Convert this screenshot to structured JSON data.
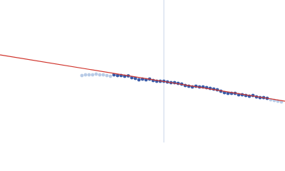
{
  "chart_data": {
    "type": "scatter",
    "xlim": [
      0,
      400
    ],
    "ylim": [
      0,
      200
    ],
    "vline": {
      "x": 230,
      "color": "#c9d5ea"
    },
    "series": [
      {
        "type": "scatter",
        "color": "#b8cbe6",
        "x": [
          115,
          120,
          125,
          130,
          135,
          140,
          145,
          150,
          155
        ],
        "values": [
          94,
          95,
          95,
          95,
          96,
          95,
          95,
          94,
          93
        ]
      },
      {
        "type": "scatter",
        "color": "#3a5ba8",
        "x": [
          160,
          165,
          170,
          175,
          180,
          185,
          190,
          195,
          200,
          205,
          210,
          215,
          220,
          225,
          230,
          235,
          240,
          245,
          250,
          255,
          260,
          265,
          270,
          275,
          280,
          285,
          290,
          295,
          300,
          305,
          310,
          315,
          320,
          325,
          330,
          335,
          340,
          345,
          350,
          355,
          360,
          365,
          370,
          375
        ],
        "values": [
          95,
          94,
          94,
          93,
          93.5,
          91,
          90,
          88,
          89,
          88,
          89,
          87,
          86,
          86,
          86,
          85,
          84,
          84,
          83,
          82,
          80,
          79,
          78,
          79,
          78,
          78,
          77,
          76,
          75,
          74,
          72,
          70,
          69,
          69,
          69,
          67,
          67,
          66,
          65,
          66,
          64,
          63,
          63,
          62
        ]
      },
      {
        "type": "scatter",
        "color": "#b8cbe6",
        "x": [
          380,
          385,
          390,
          395
        ],
        "values": [
          60,
          59,
          58,
          57
        ]
      },
      {
        "type": "line",
        "color": "#d0342c",
        "x": [
          0,
          400
        ],
        "values": [
          123,
          58
        ]
      }
    ]
  }
}
